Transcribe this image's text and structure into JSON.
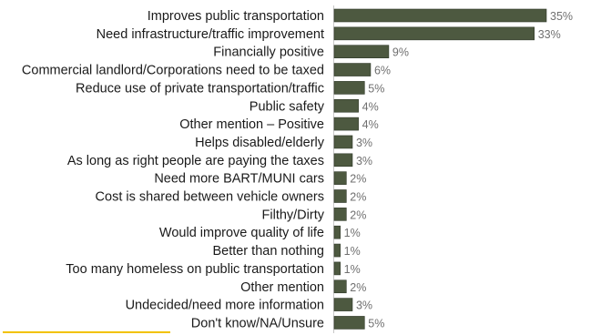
{
  "chart_data": {
    "type": "bar",
    "orientation": "horizontal",
    "categories": [
      "Improves public transportation",
      "Need infrastructure/traffic improvement",
      "Financially positive",
      "Commercial landlord/Corporations need to be taxed",
      "Reduce use of private transportation/traffic",
      "Public safety",
      "Other mention – Positive",
      "Helps disabled/elderly",
      "As long as right people are paying the taxes",
      "Need more BART/MUNI cars",
      "Cost is shared between vehicle owners",
      "Filthy/Dirty",
      "Would improve quality of life",
      "Better than nothing",
      "Too many homeless on public transportation",
      "Other mention",
      "Undecided/need more information",
      "Don't know/NA/Unsure"
    ],
    "values": [
      35,
      33,
      9,
      6,
      5,
      4,
      4,
      3,
      3,
      2,
      2,
      2,
      1,
      1,
      1,
      2,
      3,
      5
    ],
    "value_labels": [
      "35%",
      "33%",
      "9%",
      "6%",
      "5%",
      "4%",
      "4%",
      "3%",
      "3%",
      "2%",
      "2%",
      "2%",
      "1%",
      "1%",
      "1%",
      "2%",
      "3%",
      "5%"
    ],
    "unit": "%",
    "xlim": [
      0,
      40
    ],
    "grid": false,
    "colors": {
      "bar": "#4d5940",
      "value_label": "#707070",
      "highlight": "#f2c200"
    }
  }
}
